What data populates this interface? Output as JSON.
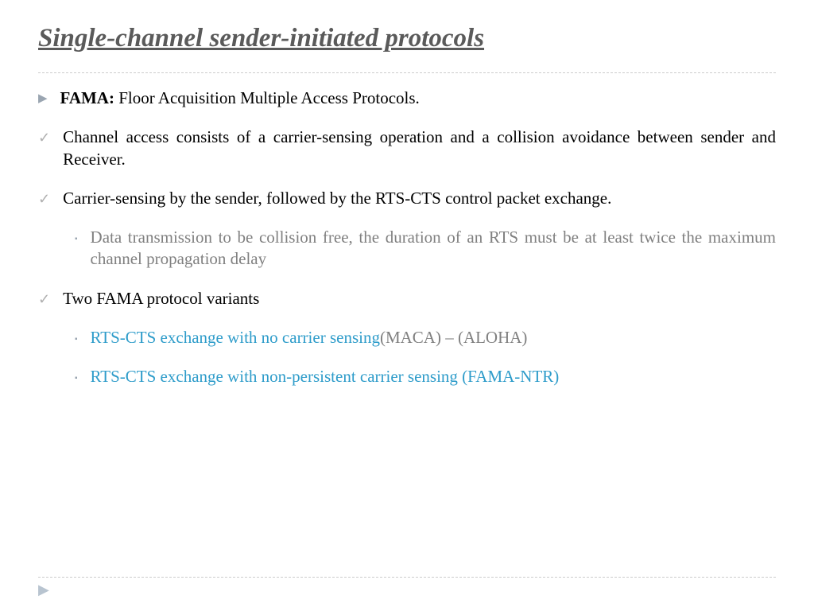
{
  "title": "Single-channel sender-initiated protocols",
  "items": {
    "fama_label": "FAMA:",
    "fama_text": " Floor Acquisition Multiple Access Protocols.",
    "point1": "Channel access consists of a carrier-sensing operation and a collision avoidance between sender and Receiver.",
    "point2": "Carrier-sensing by the sender, followed by the RTS-CTS control packet exchange.",
    "point2_sub": "Data transmission to be collision free, the duration of an RTS must be at least twice the maximum channel propagation delay",
    "point3": "Two FAMA protocol variants",
    "variant1_blue": "RTS-CTS exchange with no carrier sensing",
    "variant1_rest": "(MACA) – (ALOHA)",
    "variant2": "RTS-CTS exchange with non-persistent carrier sensing (FAMA-NTR)"
  },
  "colors": {
    "title": "#5a5a5a",
    "body": "#000000",
    "gray": "#808080",
    "blue": "#2e9cca",
    "bullet": "#9aa5b1",
    "dash": "#cccccc"
  }
}
